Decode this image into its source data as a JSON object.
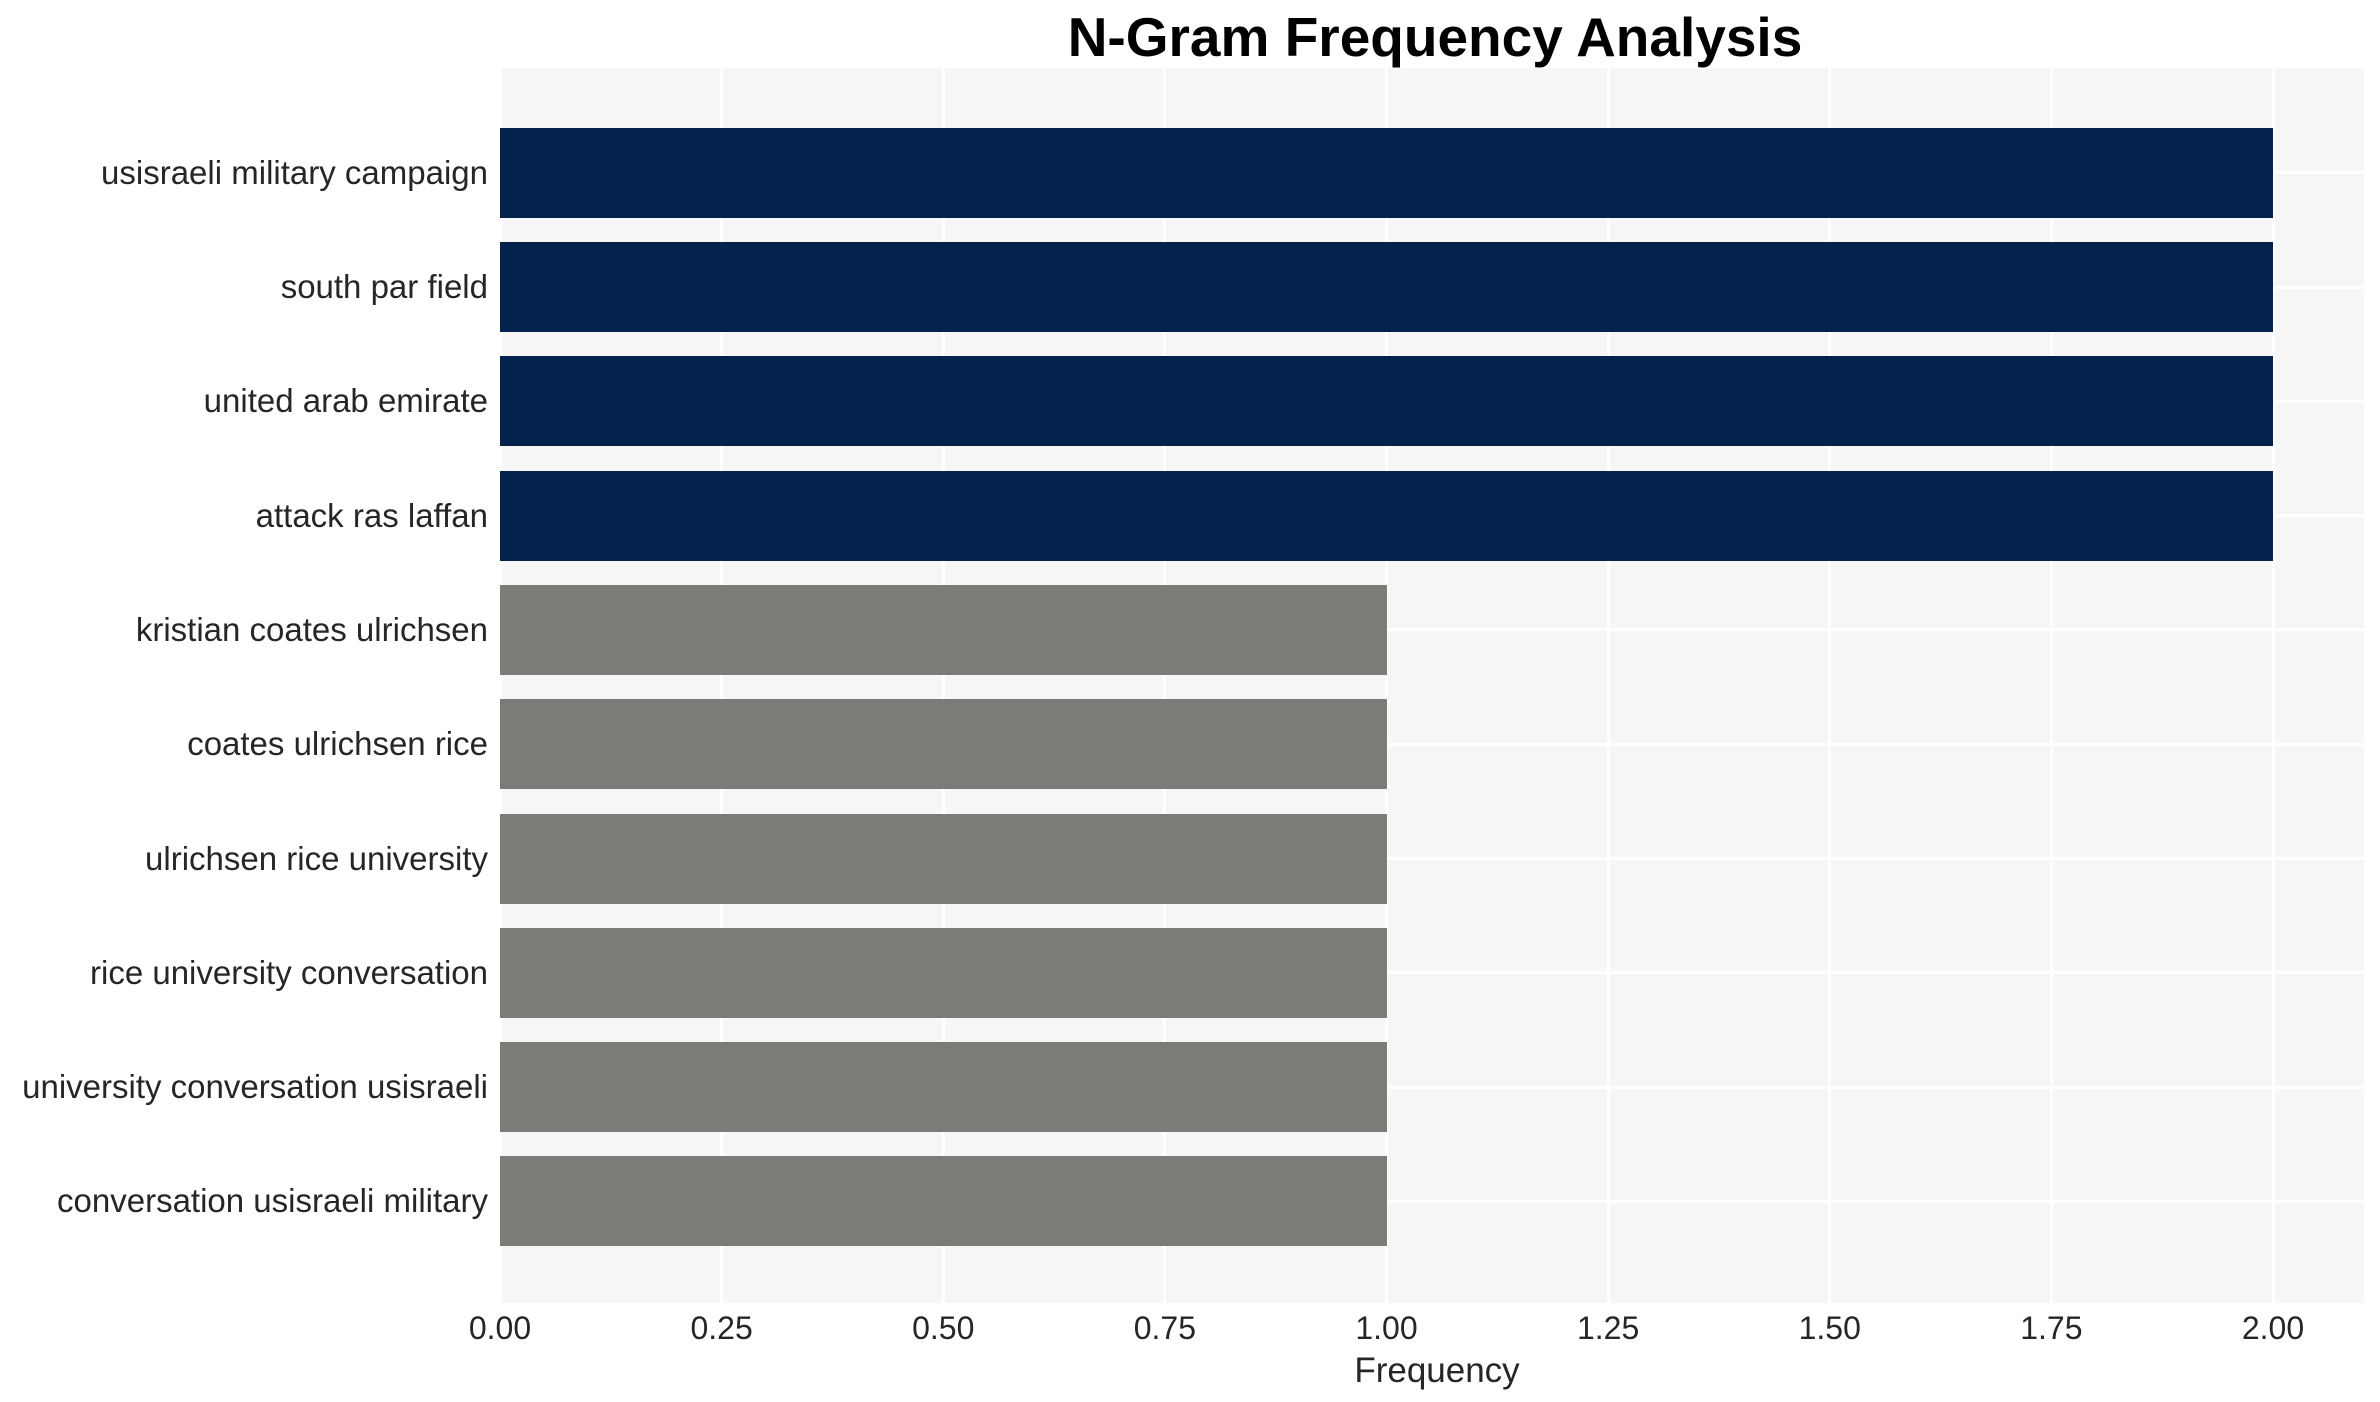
{
  "chart": {
    "title": "N-Gram Frequency Analysis",
    "xlabel": "Frequency"
  },
  "chart_data": {
    "type": "bar",
    "orientation": "horizontal",
    "title": "N-Gram Frequency Analysis",
    "xlabel": "Frequency",
    "ylabel": "",
    "categories": [
      "usisraeli military campaign",
      "south par field",
      "united arab emirate",
      "attack ras laffan",
      "kristian coates ulrichsen",
      "coates ulrichsen rice",
      "ulrichsen rice university",
      "rice university conversation",
      "university conversation usisraeli",
      "conversation usisraeli military"
    ],
    "values": [
      2,
      2,
      2,
      2,
      1,
      1,
      1,
      1,
      1,
      1
    ],
    "bar_colors": [
      "#03234d",
      "#03234d",
      "#03234d",
      "#03234d",
      "#7b7b78",
      "#7b7b78",
      "#7b7b78",
      "#7b7b78",
      "#7b7b78",
      "#7b7b78"
    ],
    "xlim": [
      0,
      2.1
    ],
    "xticks": [
      0,
      0.25,
      0.5,
      0.75,
      1.0,
      1.25,
      1.5,
      1.75,
      2.0
    ],
    "xtick_labels": [
      "0.00",
      "0.25",
      "0.50",
      "0.75",
      "1.00",
      "1.25",
      "1.50",
      "1.75",
      "2.00"
    ],
    "grid": true,
    "legend_position": "none",
    "colors": {
      "high_frequency_bar": "#03234d",
      "low_frequency_bar": "#7b7b78",
      "plot_background": "#f6f6f7",
      "gridline": "#ffffff",
      "tick_text": "#262626",
      "title_text": "#000000"
    }
  }
}
